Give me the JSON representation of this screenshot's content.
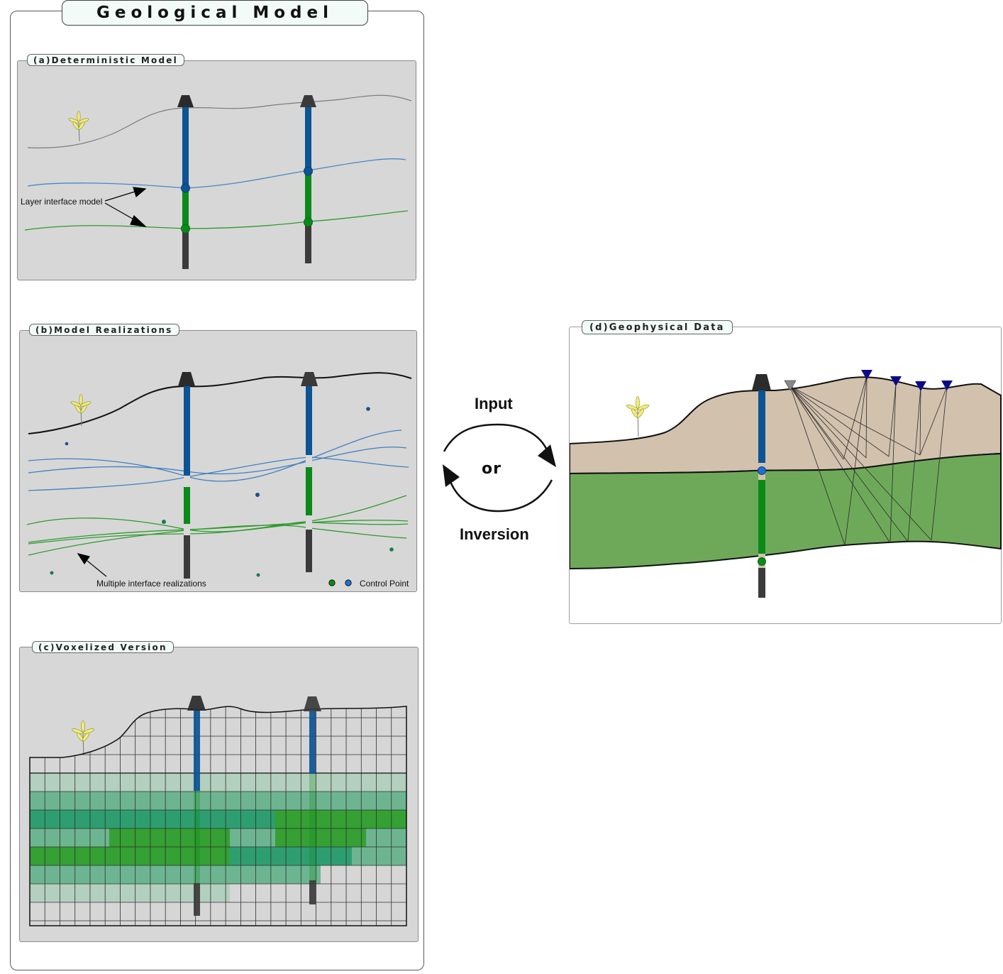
{
  "title": "Geological Model",
  "panels": {
    "a": {
      "title": "(a)Deterministic Model",
      "annotation": "Layer interface model"
    },
    "b": {
      "title": "(b)Model Realizations",
      "annotation": "Multiple interface realizations",
      "legend": "Control Point"
    },
    "c": {
      "title": "(c)Voxelized Version"
    },
    "d": {
      "title": "(d)Geophysical Data"
    }
  },
  "cycle": {
    "top": "Input",
    "middle": "or",
    "bottom": "Inversion"
  },
  "colors": {
    "panel_bg": "#d7d7d7",
    "well_blue": "#0c5494",
    "well_green": "#0b8a1a",
    "well_dark": "#3b3b3b",
    "interface_blue": "#4a86c4",
    "interface_green": "#2f9a2f",
    "sediment": "#d2c1ad",
    "bedrock": "#6ea95a",
    "receiver": "#0b0b8a",
    "source": "#888888",
    "control_green": "#1e7a3a",
    "control_blue": "#1f6fd6",
    "plant": "#f2ec7a"
  }
}
